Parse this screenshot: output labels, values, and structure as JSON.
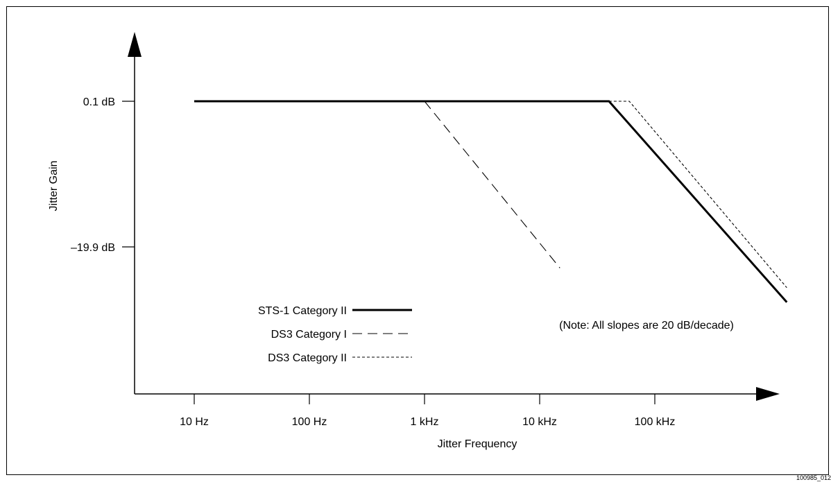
{
  "figure_id": "100985_012",
  "chart_data": {
    "type": "line",
    "xlabel": "Jitter Frequency",
    "ylabel": "Jitter Gain",
    "x_scale": "log",
    "x_ticks": [
      {
        "value": 10,
        "label": "10 Hz"
      },
      {
        "value": 100,
        "label": "100 Hz"
      },
      {
        "value": 1000,
        "label": "1 kHz"
      },
      {
        "value": 10000,
        "label": "10 kHz"
      },
      {
        "value": 100000,
        "label": "100 kHz"
      }
    ],
    "y_ticks": [
      {
        "value": 0.1,
        "label": "0.1 dB"
      },
      {
        "value": -19.9,
        "label": "–19.9 dB"
      }
    ],
    "xlim": [
      5,
      1500000
    ],
    "ylim": [
      -40,
      20
    ],
    "grid": false,
    "legend_position": "lower-left",
    "note": "(Note: All slopes are 20 dB/decade)",
    "series": [
      {
        "name": "STS-1 Category II",
        "style": "solid",
        "color": "#000000",
        "points": [
          [
            10,
            0.1
          ],
          [
            40000,
            0.1
          ],
          [
            1400000,
            -27.5
          ]
        ]
      },
      {
        "name": "DS3 Category I",
        "style": "dashed",
        "color": "#000000",
        "points": [
          [
            1000,
            0.1
          ],
          [
            15000,
            -22.8
          ]
        ]
      },
      {
        "name": "DS3 Category II",
        "style": "dotted",
        "color": "#000000",
        "points": [
          [
            40000,
            0.1
          ],
          [
            60000,
            0.1
          ],
          [
            1400000,
            -25.5
          ]
        ]
      }
    ]
  }
}
